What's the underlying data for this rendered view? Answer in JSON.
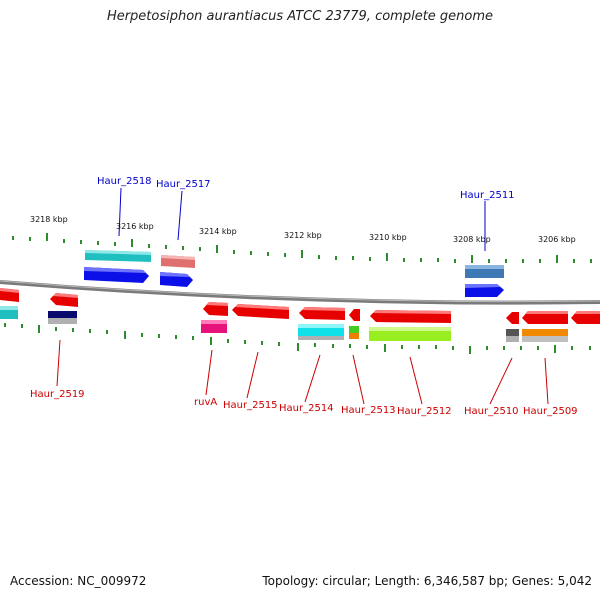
{
  "title": "Herpetosiphon aurantiacus ATCC 23779, complete genome",
  "footer": {
    "accession": "Accession: NC_009972",
    "summary": "Topology: circular; Length: 6,346,587 bp; Genes: 5,042"
  },
  "colors": {
    "forward_label": "#0000cc",
    "reverse_label": "#cc0000",
    "backbone": "#808080",
    "ticks": "#2e8b2e"
  },
  "kbp_labels": [
    "3218 kbp",
    "3216 kbp",
    "3214 kbp",
    "3212 kbp",
    "3210 kbp",
    "3208 kbp",
    "3206 kbp"
  ],
  "gene_labels": {
    "top": [
      "Haur_2518",
      "Haur_2517",
      "Haur_2511"
    ],
    "bottom": [
      "Haur_2519",
      "ruvA",
      "Haur_2515",
      "Haur_2514",
      "Haur_2513",
      "Haur_2512",
      "Haur_2510",
      "Haur_2509"
    ]
  }
}
